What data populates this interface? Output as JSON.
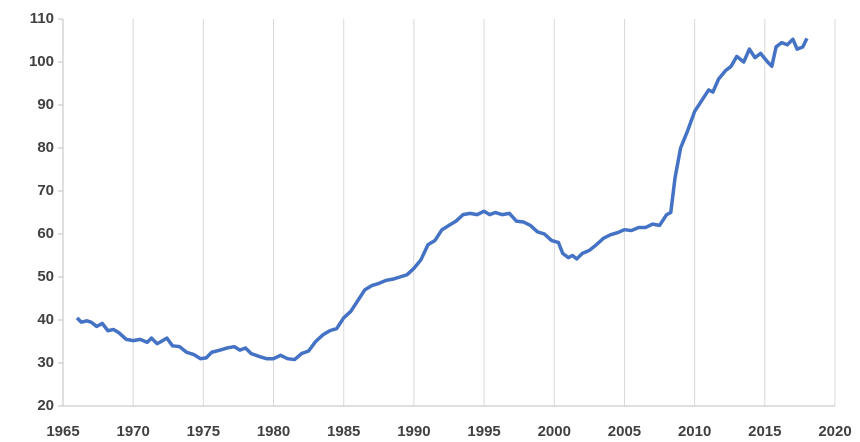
{
  "chart_data": {
    "type": "line",
    "x": [
      1966,
      1966.3,
      1966.7,
      1967,
      1967.4,
      1967.8,
      1968.2,
      1968.6,
      1969,
      1969.5,
      1970,
      1970.5,
      1971,
      1971.3,
      1971.7,
      1972,
      1972.4,
      1972.8,
      1973.3,
      1973.8,
      1974.3,
      1974.8,
      1975.2,
      1975.6,
      1976.2,
      1976.7,
      1977.2,
      1977.6,
      1978,
      1978.4,
      1979,
      1979.5,
      1980,
      1980.5,
      1981,
      1981.5,
      1982,
      1982.5,
      1983,
      1983.5,
      1984,
      1984.5,
      1985,
      1985.5,
      1986,
      1986.5,
      1987,
      1987.5,
      1988,
      1988.5,
      1989,
      1989.5,
      1990,
      1990.5,
      1991,
      1991.5,
      1992,
      1992.5,
      1993,
      1993.5,
      1994,
      1994.5,
      1995,
      1995.4,
      1995.8,
      1996.3,
      1996.8,
      1997.3,
      1997.8,
      1998.3,
      1998.8,
      1999.3,
      1999.8,
      2000.3,
      2000.6,
      2001,
      2001.3,
      2001.6,
      2002,
      2002.5,
      2003,
      2003.5,
      2004,
      2004.5,
      2005,
      2005.5,
      2006,
      2006.5,
      2007,
      2007.5,
      2008,
      2008.3,
      2008.6,
      2009,
      2009.5,
      2010,
      2010.5,
      2011,
      2011.3,
      2011.7,
      2012.2,
      2012.6,
      2013,
      2013.5,
      2013.9,
      2014.3,
      2014.7,
      2015.2,
      2015.5,
      2015.8,
      2016.2,
      2016.6,
      2017,
      2017.3,
      2017.7,
      2018
    ],
    "series": [
      {
        "color": "#4472c4",
        "values": [
          40.5,
          39.5,
          39.8,
          39.5,
          38.5,
          39.2,
          37.5,
          37.8,
          37,
          35.5,
          35.2,
          35.5,
          34.8,
          35.8,
          34.5,
          35,
          35.8,
          34,
          33.8,
          32.5,
          32,
          31,
          31.2,
          32.5,
          33,
          33.5,
          33.8,
          33,
          33.5,
          32.2,
          31.5,
          31,
          31,
          31.8,
          31,
          30.8,
          32.2,
          32.8,
          35,
          36.5,
          37.5,
          38,
          40.5,
          42,
          44.5,
          47,
          48,
          48.5,
          49.2,
          49.5,
          50,
          50.5,
          52,
          54,
          57.5,
          58.5,
          61,
          62,
          63,
          64.5,
          64.8,
          64.5,
          65.3,
          64.5,
          65,
          64.5,
          64.8,
          63,
          62.8,
          62,
          60.5,
          60,
          58.5,
          58,
          55.5,
          54.5,
          55,
          54.2,
          55.5,
          56.2,
          57.5,
          59,
          59.8,
          60.3,
          61,
          60.8,
          61.5,
          61.5,
          62.3,
          62,
          64.5,
          65,
          73,
          80,
          84,
          88.5,
          91,
          93.5,
          93,
          96,
          98,
          99,
          101.3,
          100,
          103,
          101,
          102,
          100,
          99,
          103.5,
          104.5,
          104,
          105.3,
          103,
          103.5,
          105.5
        ]
      }
    ],
    "xlim": [
      1965,
      2020
    ],
    "xticks": [
      1965,
      1970,
      1975,
      1980,
      1985,
      1990,
      1995,
      2000,
      2005,
      2010,
      2015,
      2020
    ],
    "ylim": [
      20,
      110
    ],
    "yticks": [
      20,
      30,
      40,
      50,
      60,
      70,
      80,
      90,
      100,
      110
    ],
    "grid": true
  }
}
